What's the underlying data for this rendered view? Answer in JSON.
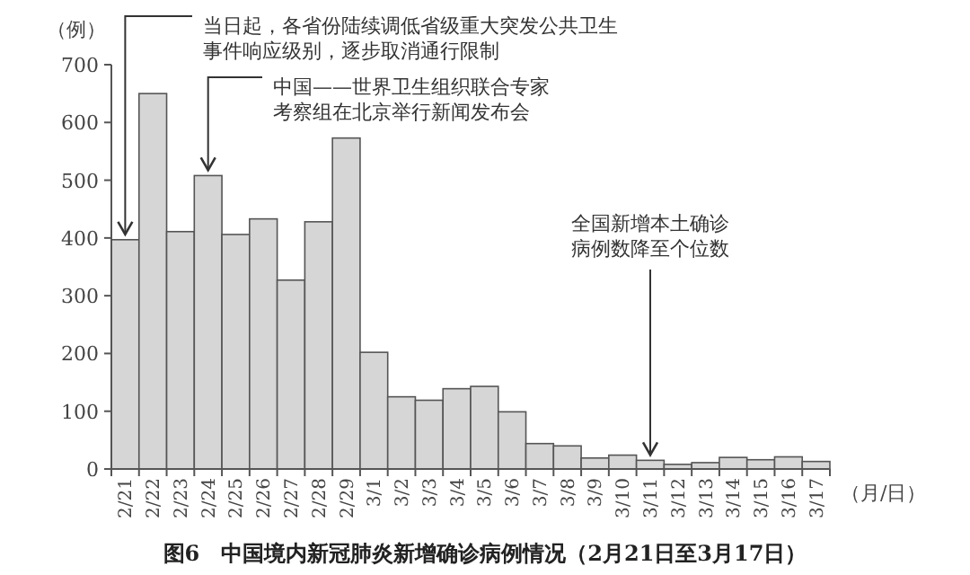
{
  "chart_data": {
    "type": "bar",
    "title": "图6　中国境内新冠肺炎新增确诊病例情况（2月21日至3月17日）",
    "ylabel": "（例）",
    "xlabel": "（月/日）",
    "categories": [
      "2/21",
      "2/22",
      "2/23",
      "2/24",
      "2/25",
      "2/26",
      "2/27",
      "2/28",
      "2/29",
      "3/1",
      "3/2",
      "3/3",
      "3/4",
      "3/5",
      "3/6",
      "3/7",
      "3/8",
      "3/9",
      "3/10",
      "3/11",
      "3/12",
      "3/13",
      "3/14",
      "3/15",
      "3/16",
      "3/17"
    ],
    "values": [
      397,
      650,
      411,
      508,
      406,
      433,
      327,
      428,
      573,
      202,
      125,
      119,
      139,
      143,
      99,
      44,
      40,
      19,
      24,
      15,
      8,
      11,
      20,
      16,
      21,
      13
    ],
    "color": "#d6d6d6",
    "ylim": [
      0,
      700
    ],
    "yticks": [
      0,
      100,
      200,
      300,
      400,
      500,
      600,
      700
    ],
    "grid": false,
    "annotations": [
      {
        "text": "当日起，各省份陆续调低省级重大突发公共卫生事件响应级别，逐步取消通行限制",
        "x": "2/21",
        "y": 397
      },
      {
        "text": "中国——世界卫生组织联合专家考察组在北京举行新闻发布会",
        "x": "2/24",
        "y": 508
      },
      {
        "text": "全国新增本土确诊病例数降至个位数",
        "x": "3/11",
        "y": 15
      }
    ]
  }
}
